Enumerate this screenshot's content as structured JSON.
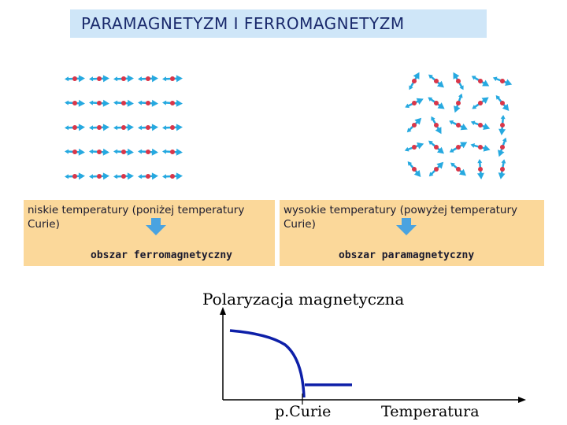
{
  "title": "PARAMAGNETYZM I FERROMAGNETYZM",
  "colors": {
    "title_bg": "#cfe6f8",
    "panel_bg": "#fbd89a",
    "arrow_blue": "#26a9e0",
    "atom_red": "#d9374a",
    "curve_blue": "#0d1fa8",
    "down_arrow": "#4aa3e0"
  },
  "panels": {
    "left": {
      "description": "niskie temperatury (poniżej temperatury Curie)",
      "result": "obszar ferromagnetyczny",
      "arrow_icon": "down-arrow-icon"
    },
    "right": {
      "description": "wysokie temperatury (powyżej temperatury Curie)",
      "result": "obszar paramagnetyczny",
      "arrow_icon": "down-arrow-icon"
    }
  },
  "lattices": {
    "ferromagnetic": {
      "rows": 5,
      "cols": 5,
      "spin_orientation": "aligned"
    },
    "paramagnetic": {
      "rows": 5,
      "cols": 5,
      "spin_orientation": "random"
    }
  },
  "graph": {
    "title": "Polaryzacja magnetyczna",
    "x_label": "Temperatura",
    "tick_label": "p.Curie"
  }
}
